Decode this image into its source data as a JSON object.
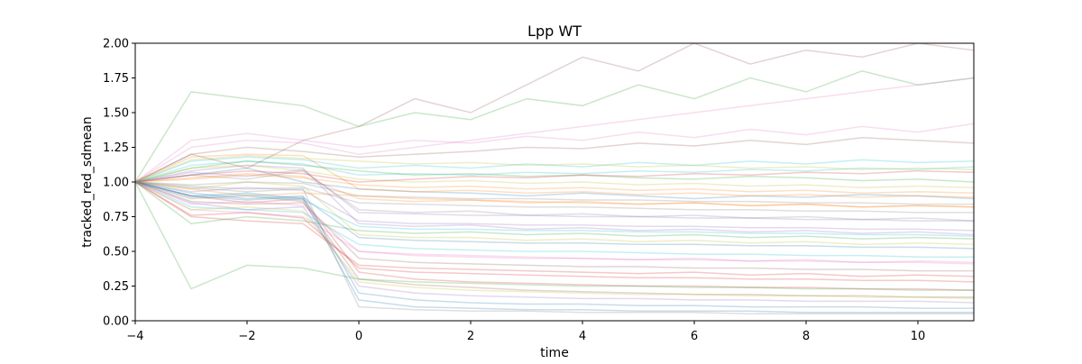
{
  "chart_data": {
    "type": "line",
    "title": "Lpp WT",
    "xlabel": "time",
    "ylabel": "tracked_red_sdmean",
    "xlim": [
      -4,
      11
    ],
    "ylim": [
      0.0,
      2.0
    ],
    "x": [
      -4,
      -3,
      -2,
      -1,
      0,
      1,
      2,
      3,
      4,
      5,
      6,
      7,
      8,
      9,
      10,
      11
    ],
    "x_ticks": [
      {
        "value": -4,
        "label": "−4"
      },
      {
        "value": -2,
        "label": "−2"
      },
      {
        "value": 0,
        "label": "0"
      },
      {
        "value": 2,
        "label": "2"
      },
      {
        "value": 4,
        "label": "4"
      },
      {
        "value": 6,
        "label": "6"
      },
      {
        "value": 8,
        "label": "8"
      },
      {
        "value": 10,
        "label": "10"
      }
    ],
    "y_ticks": [
      {
        "value": 0.0,
        "label": "0.00"
      },
      {
        "value": 0.25,
        "label": "0.25"
      },
      {
        "value": 0.5,
        "label": "0.50"
      },
      {
        "value": 0.75,
        "label": "0.75"
      },
      {
        "value": 1.0,
        "label": "1.00"
      },
      {
        "value": 1.25,
        "label": "1.25"
      },
      {
        "value": 1.5,
        "label": "1.50"
      },
      {
        "value": 1.75,
        "label": "1.75"
      },
      {
        "value": 2.0,
        "label": "2.00"
      }
    ],
    "grid": false,
    "legend": "none",
    "line_opacity": 0.25,
    "palette": [
      "#1f77b4",
      "#ff7f0e",
      "#2ca02c",
      "#d62728",
      "#9467bd",
      "#8c564b",
      "#e377c2",
      "#7f7f7f",
      "#bcbd22",
      "#17becf"
    ],
    "series": [
      {
        "values": [
          1.0,
          1.05,
          1.1,
          1.0,
          0.95,
          0.93,
          0.92,
          0.9,
          0.92,
          0.9,
          0.88,
          0.9,
          0.89,
          0.91,
          0.9,
          0.88
        ]
      },
      {
        "values": [
          1.0,
          0.95,
          0.9,
          0.92,
          0.9,
          0.88,
          0.87,
          0.86,
          0.85,
          0.84,
          0.85,
          0.83,
          0.84,
          0.82,
          0.83,
          0.82
        ]
      },
      {
        "values": [
          1.0,
          1.1,
          1.15,
          1.12,
          1.08,
          1.05,
          1.06,
          1.04,
          1.05,
          1.03,
          1.02,
          1.04,
          1.03,
          1.01,
          1.02,
          1.0
        ]
      },
      {
        "values": [
          1.0,
          0.9,
          0.85,
          0.88,
          0.35,
          0.3,
          0.28,
          0.27,
          0.26,
          0.25,
          0.25,
          0.24,
          0.24,
          0.23,
          0.23,
          0.22
        ]
      },
      {
        "values": [
          1.0,
          0.85,
          0.8,
          0.82,
          0.25,
          0.2,
          0.18,
          0.17,
          0.16,
          0.16,
          0.15,
          0.15,
          0.14,
          0.14,
          0.14,
          0.13
        ]
      },
      {
        "values": [
          1.0,
          1.2,
          1.25,
          1.22,
          1.18,
          1.2,
          1.22,
          1.25,
          1.24,
          1.28,
          1.26,
          1.3,
          1.27,
          1.32,
          1.3,
          1.28
        ]
      },
      {
        "values": [
          1.0,
          0.8,
          0.78,
          0.75,
          0.5,
          0.48,
          0.47,
          0.46,
          0.45,
          0.44,
          0.45,
          0.43,
          0.44,
          0.42,
          0.43,
          0.42
        ]
      },
      {
        "values": [
          1.0,
          1.05,
          1.02,
          1.08,
          0.8,
          0.78,
          0.79,
          0.76,
          0.77,
          0.75,
          0.76,
          0.74,
          0.75,
          0.73,
          0.74,
          0.72
        ]
      },
      {
        "values": [
          1.0,
          0.95,
          1.0,
          0.97,
          0.62,
          0.6,
          0.6,
          0.58,
          0.59,
          0.57,
          0.58,
          0.56,
          0.57,
          0.55,
          0.56,
          0.55
        ]
      },
      {
        "values": [
          1.0,
          1.15,
          1.18,
          1.16,
          1.1,
          1.12,
          1.1,
          1.13,
          1.11,
          1.14,
          1.12,
          1.15,
          1.13,
          1.16,
          1.14,
          1.15
        ]
      },
      {
        "values": [
          1.0,
          0.9,
          0.92,
          0.88,
          0.15,
          0.1,
          0.09,
          0.08,
          0.08,
          0.07,
          0.07,
          0.07,
          0.06,
          0.06,
          0.06,
          0.06
        ]
      },
      {
        "values": [
          1.0,
          1.02,
          1.05,
          1.03,
          0.98,
          0.96,
          0.97,
          0.95,
          0.96,
          0.94,
          0.95,
          0.93,
          0.94,
          0.92,
          0.93,
          0.92
        ]
      },
      {
        "values": [
          1.0,
          1.65,
          1.6,
          1.55,
          1.4,
          1.5,
          1.45,
          1.6,
          1.55,
          1.7,
          1.6,
          1.75,
          1.65,
          1.8,
          1.7,
          1.75
        ]
      },
      {
        "values": [
          1.0,
          0.75,
          0.72,
          0.7,
          0.4,
          0.38,
          0.37,
          0.36,
          0.35,
          0.34,
          0.35,
          0.33,
          0.34,
          0.32,
          0.33,
          0.32
        ]
      },
      {
        "values": [
          1.0,
          1.08,
          1.12,
          1.1,
          0.7,
          0.68,
          0.69,
          0.66,
          0.67,
          0.65,
          0.66,
          0.64,
          0.65,
          0.63,
          0.64,
          0.62
        ]
      },
      {
        "values": [
          1.0,
          0.88,
          0.9,
          0.86,
          0.3,
          0.26,
          0.24,
          0.22,
          0.21,
          0.2,
          0.19,
          0.19,
          0.18,
          0.18,
          0.17,
          0.17
        ]
      },
      {
        "values": [
          1.0,
          1.25,
          1.3,
          1.28,
          1.2,
          1.25,
          1.3,
          1.35,
          1.4,
          1.45,
          1.5,
          1.55,
          1.6,
          1.65,
          1.7,
          1.75
        ]
      },
      {
        "values": [
          1.0,
          0.97,
          0.95,
          0.96,
          0.85,
          0.84,
          0.83,
          0.82,
          0.82,
          0.81,
          0.8,
          0.8,
          0.79,
          0.79,
          0.78,
          0.78
        ]
      },
      {
        "values": [
          1.0,
          1.1,
          1.12,
          1.08,
          1.02,
          1.0,
          1.01,
          0.99,
          1.0,
          0.98,
          0.99,
          0.97,
          0.98,
          0.96,
          0.97,
          0.96
        ]
      },
      {
        "values": [
          1.0,
          0.82,
          0.8,
          0.78,
          0.55,
          0.52,
          0.51,
          0.5,
          0.5,
          0.49,
          0.48,
          0.48,
          0.47,
          0.47,
          0.46,
          0.46
        ]
      },
      {
        "values": [
          1.0,
          0.92,
          0.88,
          0.9,
          0.2,
          0.15,
          0.13,
          0.12,
          0.12,
          0.11,
          0.11,
          0.1,
          0.1,
          0.1,
          0.09,
          0.09
        ]
      },
      {
        "values": [
          1.0,
          1.18,
          1.2,
          1.19,
          0.95,
          0.93,
          0.94,
          0.92,
          0.93,
          0.91,
          0.92,
          0.9,
          0.91,
          0.89,
          0.9,
          0.89
        ]
      },
      {
        "values": [
          1.0,
          0.7,
          0.75,
          0.72,
          0.65,
          0.63,
          0.64,
          0.62,
          0.63,
          0.61,
          0.62,
          0.6,
          0.61,
          0.59,
          0.6,
          0.59
        ]
      },
      {
        "values": [
          1.0,
          1.05,
          1.08,
          1.06,
          1.0,
          1.02,
          1.04,
          1.03,
          1.05,
          1.04,
          1.06,
          1.05,
          1.07,
          1.06,
          1.08,
          1.07
        ]
      },
      {
        "values": [
          1.0,
          0.93,
          0.96,
          0.94,
          0.72,
          0.7,
          0.7,
          0.69,
          0.69,
          0.68,
          0.68,
          0.67,
          0.67,
          0.66,
          0.66,
          0.65
        ]
      },
      {
        "values": [
          1.0,
          0.86,
          0.84,
          0.85,
          0.45,
          0.42,
          0.41,
          0.4,
          0.39,
          0.39,
          0.38,
          0.38,
          0.37,
          0.37,
          0.36,
          0.36
        ]
      },
      {
        "values": [
          1.0,
          1.3,
          1.35,
          1.3,
          1.25,
          1.3,
          1.28,
          1.33,
          1.3,
          1.36,
          1.32,
          1.38,
          1.34,
          1.4,
          1.36,
          1.42
        ]
      },
      {
        "values": [
          1.0,
          0.98,
          1.0,
          0.99,
          0.9,
          0.89,
          0.88,
          0.88,
          0.87,
          0.87,
          0.86,
          0.86,
          0.85,
          0.85,
          0.84,
          0.84
        ]
      },
      {
        "values": [
          1.0,
          0.8,
          0.82,
          0.79,
          0.28,
          0.24,
          0.22,
          0.21,
          0.2,
          0.19,
          0.19,
          0.18,
          0.18,
          0.17,
          0.17,
          0.16
        ]
      },
      {
        "values": [
          1.0,
          1.12,
          1.15,
          1.13,
          1.05,
          1.06,
          1.05,
          1.07,
          1.06,
          1.08,
          1.07,
          1.09,
          1.08,
          1.1,
          1.09,
          1.11
        ]
      },
      {
        "values": [
          1.0,
          0.9,
          0.87,
          0.89,
          0.6,
          0.58,
          0.57,
          0.56,
          0.56,
          0.55,
          0.55,
          0.54,
          0.54,
          0.53,
          0.53,
          0.52
        ]
      },
      {
        "values": [
          1.0,
          1.03,
          1.06,
          1.04,
          0.88,
          0.86,
          0.87,
          0.85,
          0.86,
          0.84,
          0.85,
          0.83,
          0.84,
          0.82,
          0.83,
          0.82
        ]
      },
      {
        "values": [
          1.0,
          0.23,
          0.4,
          0.38,
          0.3,
          0.28,
          0.27,
          0.26,
          0.25,
          0.25,
          0.24,
          0.24,
          0.23,
          0.23,
          0.22,
          0.22
        ]
      },
      {
        "values": [
          1.0,
          0.76,
          0.78,
          0.74,
          0.38,
          0.35,
          0.34,
          0.33,
          0.32,
          0.31,
          0.31,
          0.3,
          0.3,
          0.29,
          0.29,
          0.28
        ]
      },
      {
        "values": [
          1.0,
          1.07,
          1.04,
          1.09,
          0.78,
          0.77,
          0.76,
          0.76,
          0.75,
          0.75,
          0.74,
          0.74,
          0.73,
          0.73,
          0.72,
          0.72
        ]
      },
      {
        "values": [
          1.0,
          1.2,
          1.1,
          1.3,
          1.4,
          1.6,
          1.5,
          1.7,
          1.9,
          1.8,
          2.0,
          1.85,
          1.95,
          1.9,
          2.0,
          1.95
        ]
      },
      {
        "values": [
          1.0,
          0.84,
          0.86,
          0.83,
          0.5,
          0.47,
          0.46,
          0.45,
          0.45,
          0.44,
          0.44,
          0.43,
          0.43,
          0.42,
          0.42,
          0.41
        ]
      },
      {
        "values": [
          1.0,
          0.96,
          0.93,
          0.95,
          0.1,
          0.08,
          0.07,
          0.07,
          0.06,
          0.06,
          0.06,
          0.05,
          0.05,
          0.05,
          0.05,
          0.05
        ]
      },
      {
        "values": [
          1.0,
          1.16,
          1.19,
          1.17,
          1.15,
          1.13,
          1.14,
          1.12,
          1.13,
          1.11,
          1.12,
          1.1,
          1.11,
          1.09,
          1.1,
          1.09
        ]
      },
      {
        "values": [
          1.0,
          0.89,
          0.91,
          0.87,
          0.68,
          0.66,
          0.66,
          0.65,
          0.65,
          0.64,
          0.64,
          0.63,
          0.63,
          0.62,
          0.62,
          0.61
        ]
      }
    ]
  }
}
